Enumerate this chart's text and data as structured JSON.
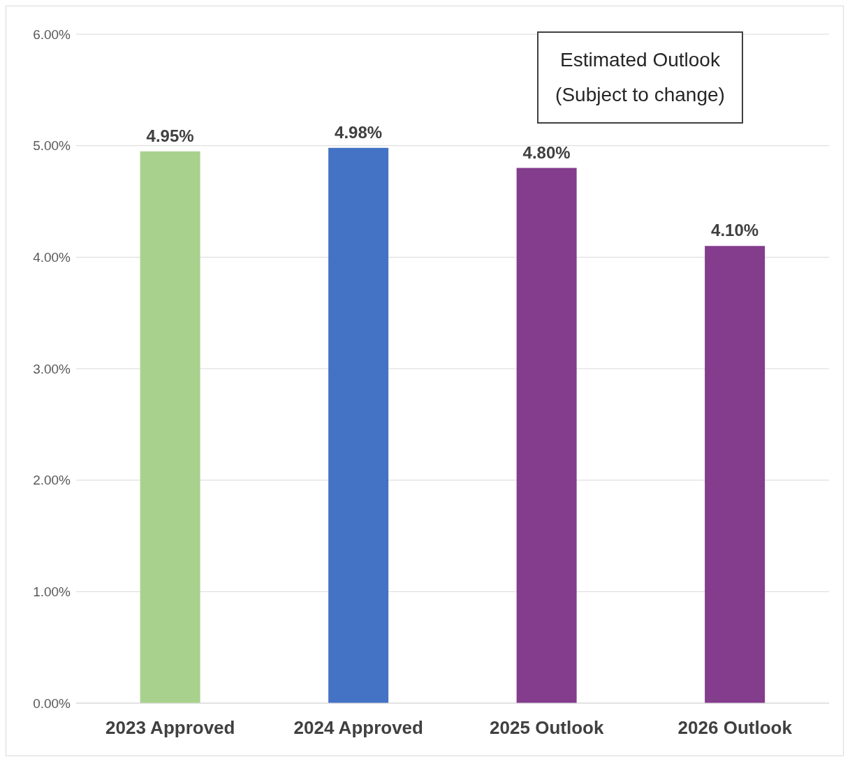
{
  "chart_data": {
    "type": "bar",
    "categories": [
      "2023 Approved",
      "2024 Approved",
      "2025 Outlook",
      "2026 Outlook"
    ],
    "values": [
      4.95,
      4.98,
      4.8,
      4.1
    ],
    "colors": [
      "#a9d18e",
      "#4472c4",
      "#843c8c",
      "#843c8c"
    ],
    "value_labels": [
      "4.95%",
      "4.98%",
      "4.80%",
      "4.10%"
    ],
    "ylim": [
      0,
      6
    ],
    "yticks": [
      {
        "value": 0,
        "label": "0.00%"
      },
      {
        "value": 1,
        "label": "1.00%"
      },
      {
        "value": 2,
        "label": "2.00%"
      },
      {
        "value": 3,
        "label": "3.00%"
      },
      {
        "value": 4,
        "label": "4.00%"
      },
      {
        "value": 5,
        "label": "5.00%"
      },
      {
        "value": 6,
        "label": "6.00%"
      }
    ],
    "grid": "y",
    "annotations": [
      "Estimated Outlook (Subject to change)"
    ]
  }
}
